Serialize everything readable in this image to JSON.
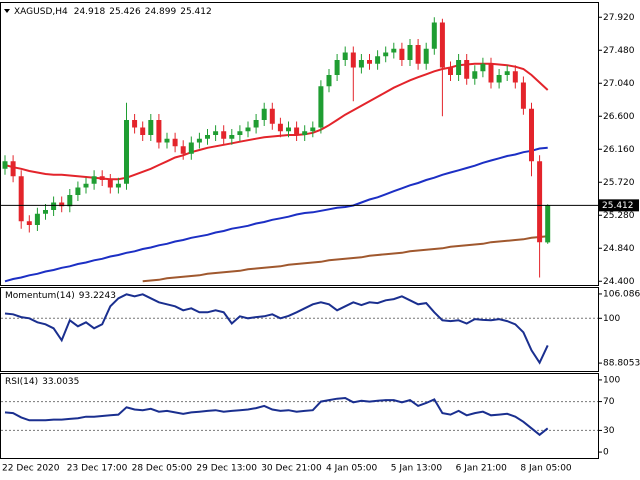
{
  "chart_data": [
    {
      "type": "candlestick",
      "symbol": "XAGUSD,H4",
      "categories": [
        "22 Dec 2020",
        null,
        null,
        null,
        null,
        null,
        null,
        null,
        "23 Dec 17:00",
        null,
        null,
        null,
        null,
        null,
        null,
        null,
        "28 Dec 05:00",
        null,
        null,
        null,
        null,
        null,
        null,
        null,
        "29 Dec 13:00",
        null,
        null,
        null,
        null,
        null,
        null,
        null,
        "30 Dec 21:00",
        null,
        null,
        null,
        null,
        null,
        null,
        null,
        "4 Jan 05:00",
        null,
        null,
        null,
        null,
        null,
        null,
        null,
        "5 Jan 13:00",
        null,
        null,
        null,
        null,
        null,
        null,
        null,
        "6 Jan 21:00",
        null,
        null,
        null,
        null,
        null,
        null,
        null,
        "8 Jan 05:00",
        null,
        null,
        null
      ],
      "open": [
        25.9,
        26.0,
        25.8,
        25.2,
        25.15,
        25.3,
        25.35,
        25.45,
        25.4,
        25.55,
        25.65,
        25.7,
        25.8,
        25.75,
        25.65,
        25.7,
        26.55,
        26.45,
        26.35,
        26.55,
        26.25,
        26.3,
        26.2,
        26.1,
        26.25,
        26.3,
        26.35,
        26.4,
        26.3,
        26.35,
        26.4,
        26.45,
        26.55,
        26.7,
        26.5,
        26.4,
        26.45,
        26.35,
        26.4,
        26.45,
        27.0,
        27.15,
        27.35,
        27.45,
        27.25,
        27.35,
        27.3,
        27.4,
        27.45,
        27.5,
        27.35,
        27.55,
        27.3,
        27.5,
        27.85,
        27.25,
        27.15,
        27.35,
        27.1,
        27.2,
        27.3,
        27.05,
        27.15,
        27.2,
        27.05,
        26.7,
        26.0,
        24.918
      ],
      "high": [
        26.08,
        26.08,
        25.88,
        25.28,
        25.38,
        25.43,
        25.53,
        25.53,
        25.63,
        25.73,
        25.78,
        25.88,
        25.88,
        25.83,
        25.78,
        26.78,
        26.63,
        26.53,
        26.63,
        26.63,
        26.38,
        26.38,
        26.28,
        26.33,
        26.38,
        26.43,
        26.48,
        26.48,
        26.43,
        26.48,
        26.53,
        26.63,
        26.78,
        26.78,
        26.58,
        26.53,
        26.53,
        26.48,
        26.53,
        27.08,
        27.23,
        27.43,
        27.53,
        27.53,
        27.43,
        27.43,
        27.48,
        27.53,
        27.58,
        27.58,
        27.63,
        27.63,
        27.58,
        27.92,
        27.9,
        27.33,
        27.43,
        27.43,
        27.28,
        27.38,
        27.38,
        27.23,
        27.28,
        27.28,
        27.13,
        26.78,
        26.08,
        25.426
      ],
      "low": [
        25.82,
        25.72,
        25.1,
        25.05,
        25.07,
        25.22,
        25.27,
        25.32,
        25.32,
        25.47,
        25.57,
        25.62,
        25.67,
        25.57,
        25.57,
        25.62,
        26.37,
        26.27,
        26.27,
        26.17,
        26.17,
        26.12,
        26.02,
        26.02,
        26.17,
        26.22,
        26.27,
        26.22,
        26.22,
        26.27,
        26.32,
        26.37,
        26.47,
        26.42,
        26.32,
        26.32,
        26.27,
        26.27,
        26.32,
        26.37,
        26.92,
        27.07,
        27.27,
        26.8,
        27.17,
        27.22,
        27.22,
        27.32,
        27.37,
        27.27,
        27.27,
        27.22,
        27.22,
        27.42,
        26.6,
        27.07,
        27.07,
        27.02,
        27.02,
        27.12,
        26.97,
        26.97,
        27.07,
        26.97,
        26.62,
        25.8,
        24.45,
        24.899
      ],
      "close": [
        26.0,
        25.8,
        25.2,
        25.15,
        25.3,
        25.35,
        25.45,
        25.4,
        25.55,
        25.65,
        25.7,
        25.8,
        25.75,
        25.65,
        25.7,
        26.55,
        26.45,
        26.35,
        26.55,
        26.25,
        26.3,
        26.2,
        26.1,
        26.25,
        26.3,
        26.35,
        26.4,
        26.3,
        26.35,
        26.4,
        26.45,
        26.55,
        26.7,
        26.5,
        26.4,
        26.45,
        26.35,
        26.4,
        26.45,
        27.0,
        27.15,
        27.35,
        27.45,
        27.25,
        27.35,
        27.3,
        27.4,
        27.45,
        27.5,
        27.35,
        27.55,
        27.3,
        27.5,
        27.85,
        27.25,
        27.15,
        27.35,
        27.1,
        27.2,
        27.3,
        27.05,
        27.15,
        27.2,
        27.05,
        26.7,
        26.0,
        24.92,
        25.412
      ],
      "up_color": "#1f9d32",
      "down_color": "#e3242b",
      "series": [
        {
          "color": "#e3242b",
          "values": [
            25.95,
            25.92,
            25.9,
            25.87,
            25.85,
            25.83,
            25.82,
            25.82,
            25.81,
            25.8,
            25.79,
            25.78,
            25.77,
            25.76,
            25.76,
            25.78,
            25.82,
            25.86,
            25.9,
            25.95,
            26.0,
            26.05,
            26.08,
            26.12,
            26.15,
            26.18,
            26.2,
            26.22,
            26.24,
            26.26,
            26.28,
            26.3,
            26.32,
            26.33,
            26.34,
            26.35,
            26.35,
            26.36,
            26.38,
            26.42,
            26.48,
            26.55,
            26.62,
            26.68,
            26.74,
            26.8,
            26.86,
            26.92,
            26.98,
            27.03,
            27.08,
            27.12,
            27.16,
            27.2,
            27.23,
            27.25,
            27.28,
            27.29,
            27.3,
            27.3,
            27.3,
            27.29,
            27.28,
            27.26,
            27.23,
            27.15,
            27.05,
            26.95
          ]
        },
        {
          "color": "#1c2fc4",
          "values": [
            24.4,
            24.43,
            24.45,
            24.48,
            24.5,
            24.53,
            24.55,
            24.58,
            24.6,
            24.63,
            24.65,
            24.68,
            24.7,
            24.73,
            24.75,
            24.78,
            24.8,
            24.83,
            24.85,
            24.88,
            24.9,
            24.93,
            24.95,
            24.98,
            25.0,
            25.02,
            25.05,
            25.07,
            25.1,
            25.12,
            25.14,
            25.17,
            25.19,
            25.22,
            25.24,
            25.26,
            25.29,
            25.31,
            25.32,
            25.34,
            25.36,
            25.38,
            25.39,
            25.41,
            25.45,
            25.49,
            25.52,
            25.56,
            25.6,
            25.64,
            25.68,
            25.71,
            25.75,
            25.78,
            25.82,
            25.85,
            25.88,
            25.91,
            25.94,
            25.98,
            26.01,
            26.04,
            26.07,
            26.09,
            26.12,
            26.14,
            26.17,
            26.18
          ]
        },
        {
          "color": "#a0582e",
          "values": [
            null,
            null,
            null,
            null,
            null,
            null,
            null,
            null,
            null,
            null,
            null,
            null,
            null,
            null,
            null,
            null,
            null,
            24.4,
            24.41,
            24.42,
            24.44,
            24.45,
            24.46,
            24.47,
            24.48,
            24.5,
            24.51,
            24.52,
            24.53,
            24.54,
            24.56,
            24.57,
            24.58,
            24.59,
            24.6,
            24.62,
            24.63,
            24.64,
            24.65,
            24.66,
            24.68,
            24.69,
            24.7,
            24.71,
            24.72,
            24.74,
            24.75,
            24.76,
            24.77,
            24.78,
            24.8,
            24.81,
            24.82,
            24.83,
            24.84,
            24.86,
            24.87,
            24.88,
            24.89,
            24.9,
            24.92,
            24.93,
            24.94,
            24.95,
            24.96,
            24.98,
            24.99,
            25.0
          ]
        }
      ],
      "ylim": [
        24.35,
        28.11
      ],
      "yticks": [
        {
          "value": 27.92,
          "label": "27.920"
        },
        {
          "value": 27.48,
          "label": "27.480"
        },
        {
          "value": 27.04,
          "label": "27.040"
        },
        {
          "value": 26.6,
          "label": "26.600"
        },
        {
          "value": 26.16,
          "label": "26.160"
        },
        {
          "value": 25.72,
          "label": "25.720"
        },
        {
          "value": 25.28,
          "label": "25.280"
        },
        {
          "value": 24.84,
          "label": "24.840"
        },
        {
          "value": 24.4,
          "label": "24.400"
        }
      ]
    },
    {
      "type": "line",
      "title": "Momentum(14)",
      "color": "#1a2f8f",
      "values": [
        101.2,
        101,
        100.3,
        100,
        99,
        98.5,
        97.5,
        94.5,
        99.5,
        98,
        99,
        97.5,
        98.5,
        103,
        105,
        106,
        105.5,
        106,
        105,
        104,
        103.5,
        103,
        102,
        102.5,
        101.5,
        101.5,
        102,
        101.5,
        98.7,
        100.5,
        100,
        100.3,
        100.5,
        101,
        100,
        100.6,
        101.5,
        102.5,
        103.5,
        104,
        103.5,
        102,
        103,
        104,
        103.3,
        104,
        103.8,
        104.5,
        104.8,
        105.5,
        104.5,
        103.5,
        103.8,
        101.5,
        99.5,
        99.3,
        99.5,
        98.7,
        99.8,
        99.6,
        99.5,
        99.8,
        99.3,
        98.5,
        96.5,
        92,
        88.9,
        93.2243
      ],
      "ylim": [
        86.83,
        107.57
      ],
      "yticks": [
        106.0864,
        100,
        88.8053
      ],
      "levels": [
        100
      ]
    },
    {
      "type": "line",
      "title": "RSI(14)",
      "color": "#1a2f8f",
      "values": [
        55,
        54,
        48,
        44,
        44,
        44,
        45,
        45,
        46,
        47,
        49,
        49,
        50,
        51,
        52,
        62,
        59,
        58,
        60,
        56,
        57,
        55,
        53,
        55,
        56,
        57,
        58,
        56,
        57,
        58,
        59,
        61,
        64,
        59,
        57,
        58,
        56,
        57,
        58,
        70,
        72,
        74,
        75,
        69,
        71,
        70,
        71,
        72,
        72,
        69,
        72,
        64,
        68,
        73,
        54,
        52,
        57,
        51,
        54,
        56,
        51,
        52,
        53,
        49,
        42,
        33,
        24,
        33.0035
      ],
      "ylim": [
        -8.2,
        108.2
      ],
      "yticks": [
        100,
        70,
        30,
        0
      ],
      "levels": [
        70,
        30
      ]
    }
  ]
}
